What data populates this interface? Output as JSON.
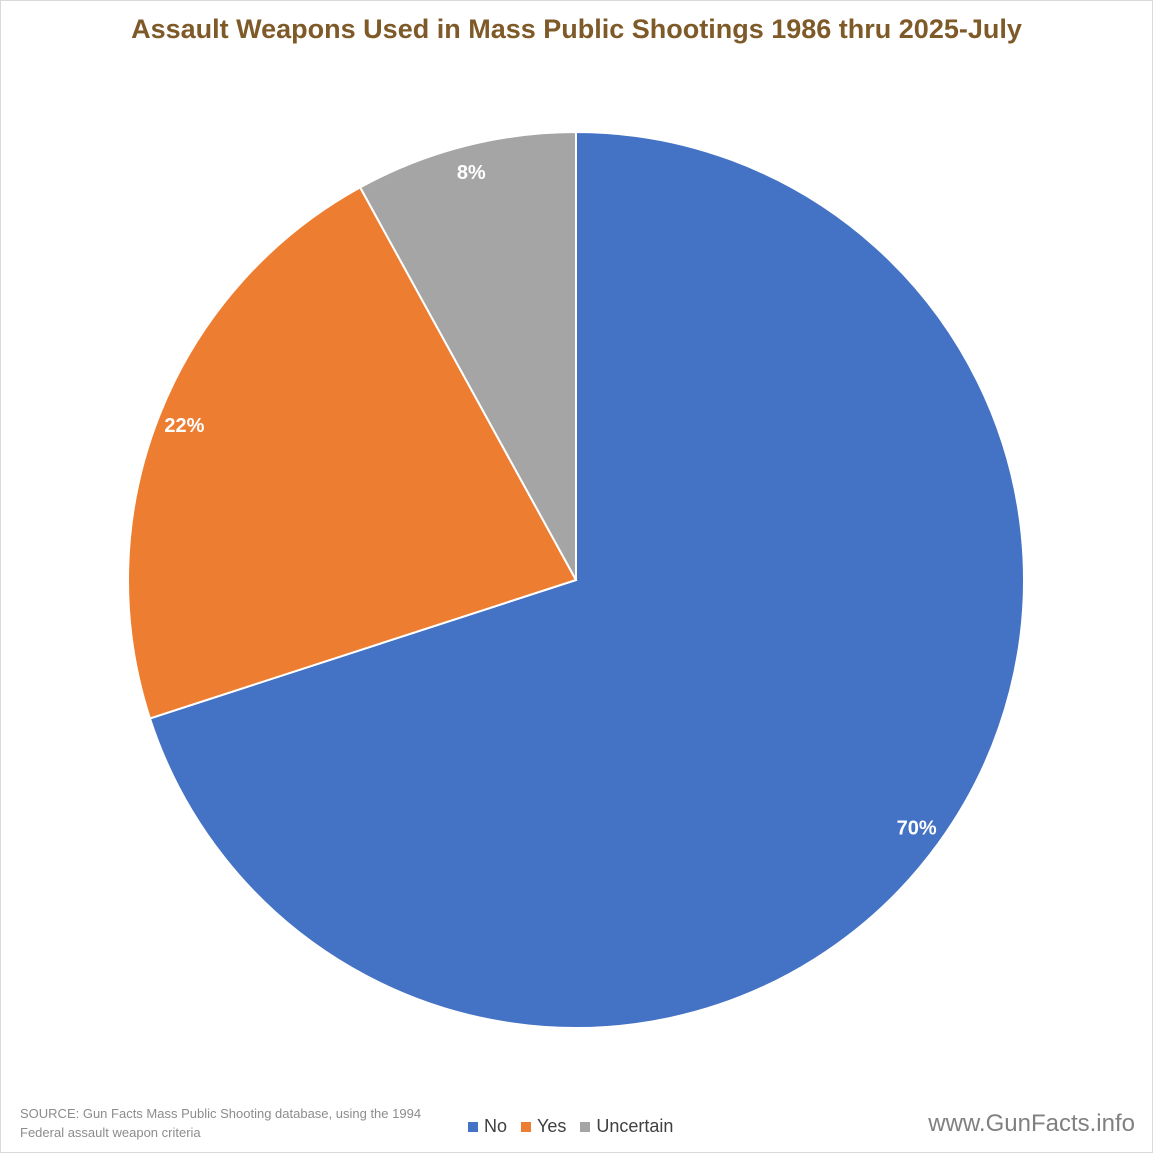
{
  "chart_data": {
    "type": "pie",
    "title": "Assault Weapons Used in Mass Public Shootings 1986 thru 2025-July",
    "slices": [
      {
        "label": "No",
        "value": 70,
        "display": "70%",
        "color": "#4472c4"
      },
      {
        "label": "Yes",
        "value": 22,
        "display": "22%",
        "color": "#ed7d31"
      },
      {
        "label": "Uncertain",
        "value": 8,
        "display": "8%",
        "color": "#a5a5a5"
      }
    ],
    "legend_position": "bottom"
  },
  "footer": {
    "source": "SOURCE: Gun Facts Mass Public Shooting database, using the 1994 Federal assault weapon criteria",
    "site": "www.GunFacts.info"
  }
}
